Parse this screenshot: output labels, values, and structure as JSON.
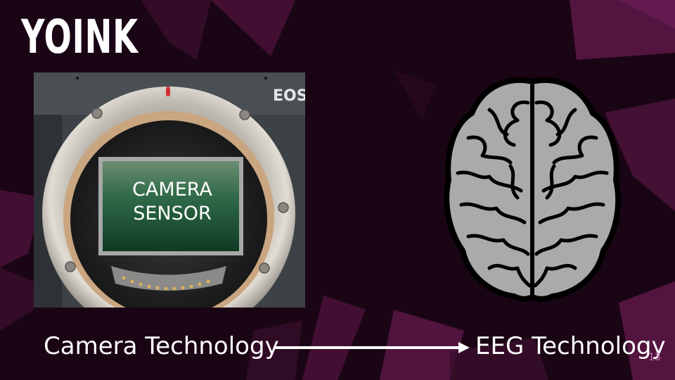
{
  "slide": {
    "title": "YOINK",
    "photo": {
      "sensor_label_line1": "CAMERA",
      "sensor_label_line2": "SENSOR",
      "brand_text": "EOS"
    },
    "captions": {
      "left": "Camera Technology",
      "right": "EEG Technology"
    },
    "page_number": "13",
    "colors": {
      "background": "#1a0514",
      "shard": "#5a1745",
      "text": "#ffffff",
      "page_number": "#c06aa8"
    },
    "icons": [
      "camera-mount-photo",
      "brain-icon",
      "arrow-right-icon"
    ]
  }
}
